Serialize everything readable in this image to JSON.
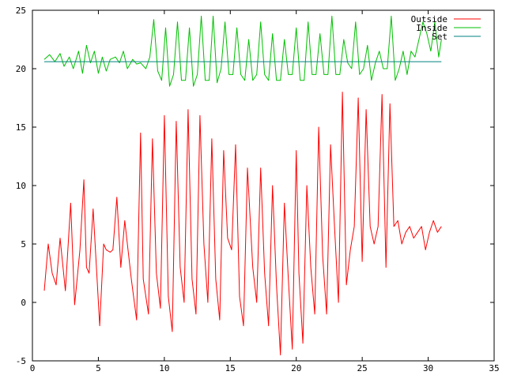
{
  "chart_data": {
    "type": "line",
    "title": "",
    "xlabel": "",
    "ylabel": "",
    "xlim": [
      0,
      35
    ],
    "ylim": [
      -5,
      25
    ],
    "x_ticks": [
      0,
      5,
      10,
      15,
      20,
      25,
      30,
      35
    ],
    "y_ticks": [
      -5,
      0,
      5,
      10,
      15,
      20,
      25
    ],
    "grid": false,
    "legend_position": "top-right",
    "series": [
      {
        "name": "Outside",
        "color": "#ff0000",
        "x": [
          0.9,
          1.2,
          1.5,
          1.8,
          2.1,
          2.5,
          2.9,
          3.2,
          3.6,
          3.9,
          4.1,
          4.3,
          4.6,
          4.9,
          5.1,
          5.4,
          5.6,
          5.9,
          6.1,
          6.4,
          6.7,
          7.0,
          7.2,
          7.5,
          7.9,
          8.2,
          8.4,
          8.8,
          9.1,
          9.4,
          9.7,
          10.0,
          10.3,
          10.6,
          10.9,
          11.2,
          11.5,
          11.8,
          12.1,
          12.4,
          12.7,
          13.0,
          13.3,
          13.6,
          13.9,
          14.2,
          14.5,
          14.8,
          15.1,
          15.4,
          15.7,
          16.0,
          16.3,
          16.7,
          17.0,
          17.3,
          17.6,
          17.9,
          18.2,
          18.5,
          18.8,
          19.1,
          19.4,
          19.7,
          20.0,
          20.2,
          20.5,
          20.8,
          21.1,
          21.4,
          21.7,
          22.0,
          22.3,
          22.6,
          22.9,
          23.2,
          23.5,
          23.8,
          24.1,
          24.4,
          24.7,
          25.0,
          25.3,
          25.6,
          25.9,
          26.2,
          26.5,
          26.8,
          27.1,
          27.4,
          27.7,
          28.0,
          28.3,
          28.6,
          28.9,
          29.2,
          29.5,
          29.8,
          30.1,
          30.4,
          30.7,
          31.0
        ],
        "values": [
          1.0,
          5.0,
          2.5,
          1.5,
          5.5,
          1.0,
          8.5,
          -0.2,
          4.5,
          10.5,
          3.0,
          2.5,
          8.0,
          2.0,
          -2.0,
          5.0,
          4.5,
          4.3,
          4.5,
          9.0,
          3.0,
          7.0,
          5.0,
          2.0,
          -1.5,
          14.5,
          2.0,
          -1.0,
          14.0,
          2.5,
          -0.5,
          16.0,
          0.5,
          -2.5,
          15.5,
          3.0,
          0.0,
          16.5,
          2.0,
          -1.0,
          16.0,
          5.0,
          0.0,
          14.0,
          2.0,
          -1.5,
          13.0,
          5.5,
          4.5,
          13.5,
          0.5,
          -2.0,
          11.5,
          3.0,
          0.0,
          11.5,
          2.5,
          -2.0,
          10.0,
          1.5,
          -4.5,
          8.5,
          2.0,
          -4.0,
          13.0,
          2.5,
          -3.5,
          10.0,
          3.0,
          -1.0,
          15.0,
          4.0,
          -1.0,
          13.5,
          6.5,
          0.0,
          18.0,
          1.5,
          4.5,
          6.5,
          17.5,
          3.5,
          16.5,
          6.5,
          5.0,
          6.5,
          17.8,
          3.0,
          17.0,
          6.5,
          7.0,
          5.0,
          6.0,
          6.5,
          5.5,
          6.0,
          6.5,
          4.5,
          6.0,
          7.0,
          6.0,
          6.5
        ]
      },
      {
        "name": "Inside",
        "color": "#00c000",
        "x": [
          0.9,
          1.3,
          1.7,
          2.1,
          2.4,
          2.8,
          3.1,
          3.5,
          3.8,
          4.1,
          4.4,
          4.7,
          5.0,
          5.3,
          5.6,
          5.9,
          6.3,
          6.6,
          6.9,
          7.2,
          7.6,
          7.9,
          8.2,
          8.6,
          8.9,
          9.2,
          9.5,
          9.8,
          10.1,
          10.4,
          10.7,
          11.0,
          11.3,
          11.6,
          11.9,
          12.2,
          12.5,
          12.8,
          13.1,
          13.4,
          13.7,
          14.0,
          14.3,
          14.6,
          14.9,
          15.2,
          15.5,
          15.8,
          16.1,
          16.4,
          16.7,
          17.0,
          17.3,
          17.6,
          17.9,
          18.2,
          18.5,
          18.8,
          19.1,
          19.4,
          19.7,
          20.0,
          20.3,
          20.6,
          20.9,
          21.2,
          21.5,
          21.8,
          22.1,
          22.4,
          22.7,
          23.0,
          23.3,
          23.6,
          23.9,
          24.2,
          24.5,
          24.8,
          25.1,
          25.4,
          25.7,
          26.0,
          26.3,
          26.6,
          26.9,
          27.2,
          27.5,
          27.8,
          28.1,
          28.4,
          28.7,
          29.0,
          29.3,
          29.6,
          29.9,
          30.2,
          30.5,
          30.8,
          31.0
        ],
        "values": [
          20.8,
          21.2,
          20.6,
          21.3,
          20.2,
          21.0,
          20.0,
          21.5,
          19.6,
          22.0,
          20.5,
          21.5,
          19.6,
          21.0,
          19.8,
          20.8,
          21.0,
          20.5,
          21.5,
          20.0,
          20.8,
          20.4,
          20.5,
          20.0,
          21.0,
          24.2,
          19.8,
          19.0,
          23.5,
          18.5,
          19.5,
          24.0,
          19.0,
          19.0,
          23.5,
          18.5,
          19.5,
          24.5,
          19.0,
          19.0,
          24.5,
          18.8,
          20.0,
          24.0,
          19.5,
          19.5,
          23.5,
          19.5,
          19.0,
          22.5,
          19.0,
          19.5,
          24.0,
          19.5,
          19.0,
          23.0,
          19.0,
          19.0,
          22.5,
          19.5,
          19.5,
          23.5,
          19.0,
          19.0,
          24.0,
          19.5,
          19.5,
          23.0,
          19.5,
          19.5,
          24.5,
          19.5,
          19.5,
          22.5,
          20.5,
          20.0,
          24.0,
          19.5,
          20.0,
          22.0,
          19.0,
          20.5,
          21.5,
          20.0,
          20.0,
          24.5,
          19.0,
          20.0,
          21.5,
          19.5,
          21.5,
          21.0,
          22.5,
          24.0,
          23.0,
          21.5,
          24.0,
          21.0,
          22.5
        ]
      },
      {
        "name": "Set",
        "color": "#008080",
        "x": [
          0.9,
          31.0
        ],
        "values": [
          20.6,
          20.6
        ]
      }
    ]
  }
}
